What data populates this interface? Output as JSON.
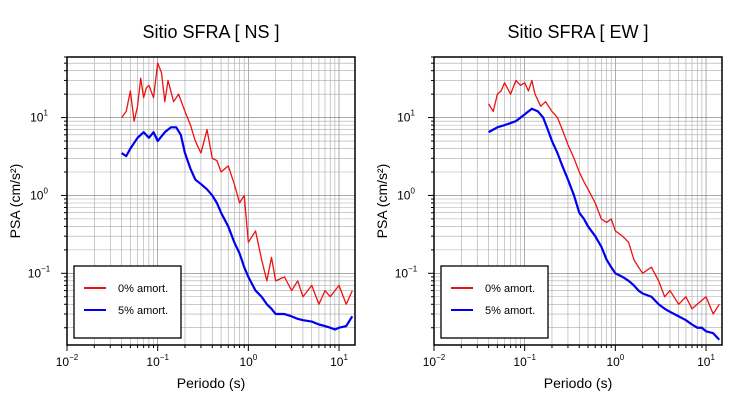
{
  "chart_data": [
    {
      "type": "line",
      "title": "Sitio SFRA [ NS ]",
      "xlabel": "Periodo (s)",
      "ylabel": "PSA (cm/s²)",
      "xscale": "log",
      "yscale": "log",
      "xlim": [
        0.01,
        15
      ],
      "ylim": [
        0.012,
        60
      ],
      "x_ticks": [
        {
          "base": "10",
          "exp": "−2"
        },
        {
          "base": "10",
          "exp": "−1"
        },
        {
          "base": "10",
          "exp": "0"
        },
        {
          "base": "10",
          "exp": "1"
        }
      ],
      "y_ticks": [
        {
          "base": "10",
          "exp": "−1"
        },
        {
          "base": "10",
          "exp": "0"
        },
        {
          "base": "10",
          "exp": "1"
        }
      ],
      "grid": true,
      "legend_position": "bottom-left",
      "series": [
        {
          "name": "0% amort.",
          "color": "#ee1111",
          "x": [
            0.04,
            0.045,
            0.05,
            0.055,
            0.06,
            0.065,
            0.07,
            0.075,
            0.08,
            0.09,
            0.1,
            0.11,
            0.12,
            0.13,
            0.15,
            0.17,
            0.2,
            0.23,
            0.26,
            0.3,
            0.35,
            0.4,
            0.45,
            0.5,
            0.6,
            0.7,
            0.8,
            0.9,
            1.0,
            1.2,
            1.4,
            1.6,
            1.8,
            2.0,
            2.5,
            3.0,
            3.5,
            4.0,
            5.0,
            6.0,
            7.0,
            8.0,
            10.0,
            12.0,
            14.0
          ],
          "y": [
            10,
            12,
            22,
            9,
            14,
            32,
            18,
            24,
            26,
            18,
            50,
            38,
            16,
            30,
            16,
            20,
            12,
            8,
            5,
            3.5,
            7,
            3,
            2.8,
            2,
            2.4,
            1.4,
            0.8,
            1.0,
            0.25,
            0.35,
            0.15,
            0.08,
            0.16,
            0.08,
            0.09,
            0.06,
            0.08,
            0.05,
            0.07,
            0.04,
            0.06,
            0.05,
            0.07,
            0.04,
            0.06
          ]
        },
        {
          "name": "5% amort.",
          "color": "#0000ee",
          "x": [
            0.04,
            0.045,
            0.05,
            0.06,
            0.07,
            0.08,
            0.09,
            0.1,
            0.12,
            0.14,
            0.16,
            0.18,
            0.2,
            0.23,
            0.26,
            0.3,
            0.35,
            0.4,
            0.45,
            0.5,
            0.6,
            0.7,
            0.8,
            0.9,
            1.0,
            1.2,
            1.4,
            1.6,
            1.8,
            2.0,
            2.5,
            3.0,
            3.5,
            4.0,
            5.0,
            6.0,
            7.0,
            8.0,
            9.0,
            10.0,
            12.0,
            14.0
          ],
          "y": [
            3.5,
            3.2,
            4.0,
            5.5,
            6.5,
            5.5,
            6.5,
            5.0,
            6.5,
            7.5,
            7.5,
            6.0,
            3.5,
            2.2,
            1.6,
            1.4,
            1.2,
            1.0,
            0.8,
            0.6,
            0.4,
            0.25,
            0.18,
            0.12,
            0.09,
            0.06,
            0.05,
            0.04,
            0.035,
            0.03,
            0.03,
            0.028,
            0.026,
            0.025,
            0.024,
            0.022,
            0.021,
            0.02,
            0.019,
            0.02,
            0.021,
            0.028
          ]
        }
      ]
    },
    {
      "type": "line",
      "title": "Sitio SFRA [ EW ]",
      "xlabel": "Periodo (s)",
      "ylabel": "PSA (cm/s²)",
      "xscale": "log",
      "yscale": "log",
      "xlim": [
        0.01,
        15
      ],
      "ylim": [
        0.012,
        60
      ],
      "x_ticks": [
        {
          "base": "10",
          "exp": "−2"
        },
        {
          "base": "10",
          "exp": "−1"
        },
        {
          "base": "10",
          "exp": "0"
        },
        {
          "base": "10",
          "exp": "1"
        }
      ],
      "y_ticks": [
        {
          "base": "10",
          "exp": "−1"
        },
        {
          "base": "10",
          "exp": "0"
        },
        {
          "base": "10",
          "exp": "1"
        }
      ],
      "grid": true,
      "legend_position": "bottom-left",
      "series": [
        {
          "name": "0% amort.",
          "color": "#ee1111",
          "x": [
            0.04,
            0.045,
            0.05,
            0.055,
            0.06,
            0.07,
            0.08,
            0.09,
            0.1,
            0.11,
            0.12,
            0.13,
            0.15,
            0.17,
            0.2,
            0.23,
            0.26,
            0.3,
            0.35,
            0.4,
            0.45,
            0.5,
            0.6,
            0.7,
            0.8,
            0.9,
            1.0,
            1.2,
            1.4,
            1.6,
            1.8,
            2.0,
            2.5,
            3.0,
            3.5,
            4.0,
            5.0,
            6.0,
            7.0,
            8.0,
            10.0,
            12.0,
            14.0
          ],
          "y": [
            15,
            12,
            20,
            22,
            28,
            20,
            30,
            26,
            28,
            22,
            30,
            20,
            14,
            16,
            12,
            10,
            7,
            4.5,
            3,
            2,
            1.5,
            1.2,
            0.8,
            0.5,
            0.45,
            0.5,
            0.35,
            0.3,
            0.25,
            0.15,
            0.12,
            0.1,
            0.12,
            0.08,
            0.05,
            0.06,
            0.04,
            0.05,
            0.035,
            0.04,
            0.05,
            0.03,
            0.04
          ]
        },
        {
          "name": "5% amort.",
          "color": "#0000ee",
          "x": [
            0.04,
            0.045,
            0.05,
            0.06,
            0.07,
            0.08,
            0.09,
            0.1,
            0.11,
            0.12,
            0.14,
            0.16,
            0.18,
            0.2,
            0.23,
            0.26,
            0.3,
            0.35,
            0.4,
            0.45,
            0.5,
            0.6,
            0.7,
            0.8,
            0.9,
            1.0,
            1.2,
            1.4,
            1.6,
            1.8,
            2.0,
            2.5,
            3.0,
            3.5,
            4.0,
            5.0,
            6.0,
            7.0,
            8.0,
            9.0,
            10.0,
            12.0,
            14.0
          ],
          "y": [
            6.5,
            7,
            7.5,
            8,
            8.5,
            9,
            10,
            11,
            12,
            13,
            12,
            10,
            7,
            5,
            3.5,
            2.4,
            1.6,
            1.0,
            0.6,
            0.5,
            0.4,
            0.3,
            0.22,
            0.15,
            0.12,
            0.1,
            0.09,
            0.08,
            0.07,
            0.06,
            0.055,
            0.05,
            0.04,
            0.035,
            0.032,
            0.028,
            0.025,
            0.022,
            0.02,
            0.02,
            0.018,
            0.017,
            0.014
          ]
        }
      ]
    }
  ]
}
